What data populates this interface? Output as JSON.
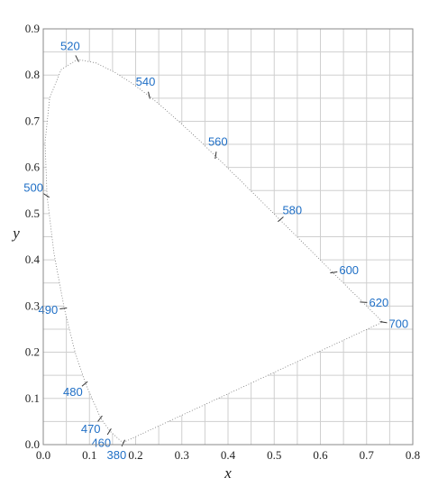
{
  "chart_data": {
    "type": "line",
    "title": "",
    "xlabel": "x",
    "ylabel": "y",
    "xlim": [
      0,
      0.8
    ],
    "ylim": [
      0,
      0.9
    ],
    "grid": true,
    "x_ticks": [
      "0.0",
      "0.1",
      "0.2",
      "0.3",
      "0.4",
      "0.5",
      "0.6",
      "0.7",
      "0.8"
    ],
    "y_ticks": [
      "0.0",
      "0.1",
      "0.2",
      "0.3",
      "0.4",
      "0.5",
      "0.6",
      "0.7",
      "0.8",
      "0.9"
    ],
    "label_color": "#1f6fc6",
    "series": [
      {
        "points": [
          [
            0.1741,
            0.005
          ],
          [
            0.1738,
            0.0049
          ],
          [
            0.1733,
            0.0048
          ],
          [
            0.1726,
            0.0048
          ],
          [
            0.1714,
            0.0051
          ],
          [
            0.1689,
            0.0069
          ],
          [
            0.144,
            0.0297
          ],
          [
            0.1241,
            0.0578
          ],
          [
            0.0913,
            0.1327
          ],
          [
            0.0687,
            0.2007
          ],
          [
            0.0454,
            0.295
          ],
          [
            0.0235,
            0.4127
          ],
          [
            0.0082,
            0.5384
          ],
          [
            0.0039,
            0.6548
          ],
          [
            0.0139,
            0.7502
          ],
          [
            0.0389,
            0.812
          ],
          [
            0.0743,
            0.8338
          ],
          [
            0.1142,
            0.8262
          ],
          [
            0.1547,
            0.8059
          ],
          [
            0.1929,
            0.7816
          ],
          [
            0.2296,
            0.7543
          ],
          [
            0.2658,
            0.7243
          ],
          [
            0.3016,
            0.6923
          ],
          [
            0.3373,
            0.6589
          ],
          [
            0.3731,
            0.6245
          ],
          [
            0.4087,
            0.5896
          ],
          [
            0.4441,
            0.5547
          ],
          [
            0.4788,
            0.5202
          ],
          [
            0.5125,
            0.4866
          ],
          [
            0.5448,
            0.4544
          ],
          [
            0.5752,
            0.4242
          ],
          [
            0.6029,
            0.3965
          ],
          [
            0.627,
            0.3725
          ],
          [
            0.6482,
            0.3514
          ],
          [
            0.6658,
            0.334
          ],
          [
            0.6801,
            0.3197
          ],
          [
            0.6915,
            0.3083
          ],
          [
            0.7006,
            0.2993
          ],
          [
            0.7079,
            0.292
          ],
          [
            0.714,
            0.2859
          ],
          [
            0.719,
            0.2809
          ],
          [
            0.723,
            0.277
          ],
          [
            0.726,
            0.274
          ],
          [
            0.7283,
            0.2717
          ],
          [
            0.73,
            0.27
          ],
          [
            0.7311,
            0.2689
          ],
          [
            0.732,
            0.268
          ],
          [
            0.7327,
            0.2673
          ],
          [
            0.7334,
            0.2666
          ],
          [
            0.734,
            0.266
          ],
          [
            0.7344,
            0.2656
          ],
          [
            0.7347,
            0.2653
          ]
        ]
      }
    ],
    "wavelength_labels": [
      {
        "text": "380",
        "x": 0.1741,
        "y": 0.005
      },
      {
        "text": "460",
        "x": 0.144,
        "y": 0.0297
      },
      {
        "text": "470",
        "x": 0.1241,
        "y": 0.0578
      },
      {
        "text": "480",
        "x": 0.0913,
        "y": 0.1327
      },
      {
        "text": "490",
        "x": 0.0454,
        "y": 0.295
      },
      {
        "text": "500",
        "x": 0.0082,
        "y": 0.5384
      },
      {
        "text": "520",
        "x": 0.0743,
        "y": 0.8338
      },
      {
        "text": "540",
        "x": 0.2296,
        "y": 0.7543
      },
      {
        "text": "560",
        "x": 0.3731,
        "y": 0.6245
      },
      {
        "text": "580",
        "x": 0.5125,
        "y": 0.4866
      },
      {
        "text": "600",
        "x": 0.627,
        "y": 0.3725
      },
      {
        "text": "620",
        "x": 0.6915,
        "y": 0.3083
      },
      {
        "text": "700",
        "x": 0.7347,
        "y": 0.2653
      }
    ]
  }
}
